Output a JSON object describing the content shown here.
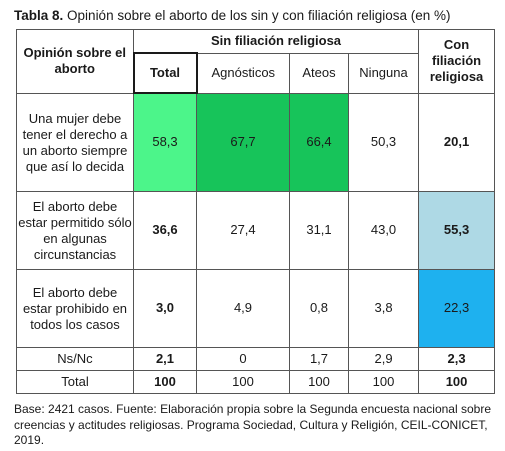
{
  "title": {
    "lead": "Tabla 8.",
    "text": "Opinión sobre el aborto de los sin y con filiación religiosa (en %)"
  },
  "table": {
    "header": {
      "opinion": "Opinión sobre el aborto",
      "sin_group": "Sin filiación religiosa",
      "con_group": "Con filiación religiosa",
      "subcolumns": [
        "Total",
        "Agnósticos",
        "Ateos",
        "Ninguna"
      ]
    },
    "rows": [
      {
        "label": "Una mujer debe tener el derecho a un aborto siempre que así lo decida",
        "values": [
          "58,3",
          "67,7",
          "66,4",
          "50,3",
          "20,1"
        ]
      },
      {
        "label": "El aborto debe estar permitido sólo en algunas circunstancias",
        "values": [
          "36,6",
          "27,4",
          "31,1",
          "43,0",
          "55,3"
        ]
      },
      {
        "label": "El aborto debe estar prohibido en todos los casos",
        "values": [
          "3,0",
          "4,9",
          "0,8",
          "3,8",
          "22,3"
        ]
      },
      {
        "label": "Ns/Nc",
        "values": [
          "2,1",
          "0",
          "1,7",
          "2,9",
          "2,3"
        ]
      },
      {
        "label": "Total",
        "values": [
          "100",
          "100",
          "100",
          "100",
          "100"
        ]
      }
    ],
    "highlight_colors": {
      "light_green": "#4cf58a",
      "green": "#17c45a",
      "light_blue": "#aed9e5",
      "blue": "#1eb1ef"
    }
  },
  "footnote": "Base: 2421 casos. Fuente: Elaboración propia sobre la Segunda encuesta nacional sobre creencias y actitudes religiosas. Programa Sociedad, Cultura y Religión, CEIL-CONICET, 2019."
}
